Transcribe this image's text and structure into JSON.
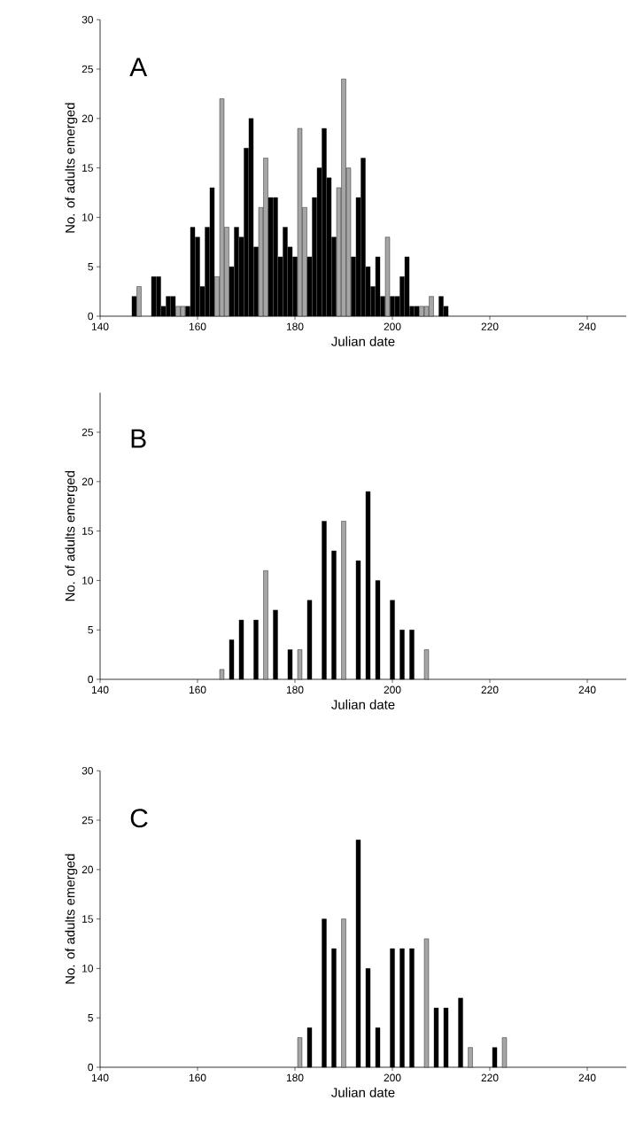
{
  "chart_data": [
    {
      "type": "bar",
      "xlabel": "Julian date",
      "ylabel": "No. of adults emerged",
      "annotations": [
        "A"
      ],
      "x": [
        147,
        148,
        151,
        152,
        153,
        154,
        155,
        156,
        157,
        158,
        159,
        160,
        161,
        162,
        163,
        164,
        165,
        166,
        167,
        168,
        169,
        170,
        171,
        172,
        173,
        174,
        175,
        176,
        177,
        178,
        179,
        180,
        181,
        182,
        183,
        184,
        185,
        186,
        187,
        188,
        189,
        190,
        191,
        192,
        193,
        194,
        195,
        196,
        197,
        198,
        199,
        200,
        201,
        202,
        203,
        204,
        205,
        206,
        207,
        208,
        210,
        211
      ],
      "values": [
        2,
        3,
        4,
        4,
        1,
        2,
        2,
        1,
        1,
        1,
        9,
        8,
        3,
        9,
        13,
        4,
        22,
        9,
        5,
        9,
        8,
        17,
        20,
        7,
        11,
        16,
        12,
        12,
        6,
        9,
        7,
        6,
        19,
        11,
        6,
        12,
        15,
        19,
        14,
        8,
        13,
        24,
        15,
        6,
        12,
        16,
        5,
        3,
        6,
        2,
        8,
        2,
        2,
        4,
        6,
        1,
        1,
        1,
        1,
        2,
        2,
        1
      ],
      "colors": [
        "#000000",
        "#a6a6a6",
        "#000000",
        "#000000",
        "#000000",
        "#000000",
        "#000000",
        "#a6a6a6",
        "#a6a6a6",
        "#000000",
        "#000000",
        "#000000",
        "#000000",
        "#000000",
        "#000000",
        "#a6a6a6",
        "#a6a6a6",
        "#a6a6a6",
        "#000000",
        "#000000",
        "#000000",
        "#000000",
        "#000000",
        "#000000",
        "#a6a6a6",
        "#a6a6a6",
        "#000000",
        "#000000",
        "#000000",
        "#000000",
        "#000000",
        "#000000",
        "#a6a6a6",
        "#a6a6a6",
        "#000000",
        "#000000",
        "#000000",
        "#000000",
        "#000000",
        "#000000",
        "#a6a6a6",
        "#a6a6a6",
        "#a6a6a6",
        "#000000",
        "#000000",
        "#000000",
        "#000000",
        "#000000",
        "#000000",
        "#000000",
        "#a6a6a6",
        "#000000",
        "#000000",
        "#000000",
        "#000000",
        "#000000",
        "#000000",
        "#a6a6a6",
        "#a6a6a6",
        "#a6a6a6",
        "#000000",
        "#000000"
      ],
      "xlim": [
        140,
        248
      ],
      "xticks": [
        140,
        160,
        180,
        200,
        220,
        240
      ],
      "ylim": [
        0,
        30
      ],
      "yticks": [
        0,
        5,
        10,
        15,
        20,
        25,
        30
      ]
    },
    {
      "type": "bar",
      "xlabel": "Julian date",
      "ylabel": "No. of adults emerged",
      "annotations": [
        "B"
      ],
      "x": [
        165,
        167,
        169,
        172,
        174,
        176,
        179,
        181,
        183,
        186,
        188,
        190,
        193,
        195,
        197,
        200,
        202,
        204,
        207
      ],
      "values": [
        1,
        4,
        6,
        6,
        11,
        7,
        3,
        3,
        8,
        16,
        13,
        16,
        12,
        19,
        10,
        8,
        5,
        5,
        3
      ],
      "colors": [
        "#a6a6a6",
        "#000000",
        "#000000",
        "#000000",
        "#a6a6a6",
        "#000000",
        "#000000",
        "#a6a6a6",
        "#000000",
        "#000000",
        "#000000",
        "#a6a6a6",
        "#000000",
        "#000000",
        "#000000",
        "#000000",
        "#000000",
        "#000000",
        "#a6a6a6"
      ],
      "xlim": [
        140,
        248
      ],
      "xticks": [
        140,
        160,
        180,
        200,
        220,
        240
      ],
      "ylim": [
        0,
        29
      ],
      "yticks": [
        0,
        5,
        10,
        15,
        20,
        25
      ]
    },
    {
      "type": "bar",
      "xlabel": "Julian date",
      "ylabel": "No. of adults emerged",
      "annotations": [
        "C"
      ],
      "x": [
        181,
        183,
        186,
        188,
        190,
        193,
        195,
        197,
        200,
        202,
        204,
        207,
        209,
        211,
        214,
        216,
        221,
        223
      ],
      "values": [
        3,
        4,
        15,
        12,
        15,
        23,
        10,
        4,
        12,
        12,
        12,
        13,
        6,
        6,
        7,
        2,
        2,
        3
      ],
      "colors": [
        "#a6a6a6",
        "#000000",
        "#000000",
        "#000000",
        "#a6a6a6",
        "#000000",
        "#000000",
        "#000000",
        "#000000",
        "#000000",
        "#000000",
        "#a6a6a6",
        "#000000",
        "#000000",
        "#000000",
        "#a6a6a6",
        "#000000",
        "#a6a6a6"
      ],
      "xlim": [
        140,
        248
      ],
      "xticks": [
        140,
        160,
        180,
        200,
        220,
        240
      ],
      "ylim": [
        0,
        30
      ],
      "yticks": [
        0,
        5,
        10,
        15,
        20,
        25,
        30
      ]
    }
  ]
}
